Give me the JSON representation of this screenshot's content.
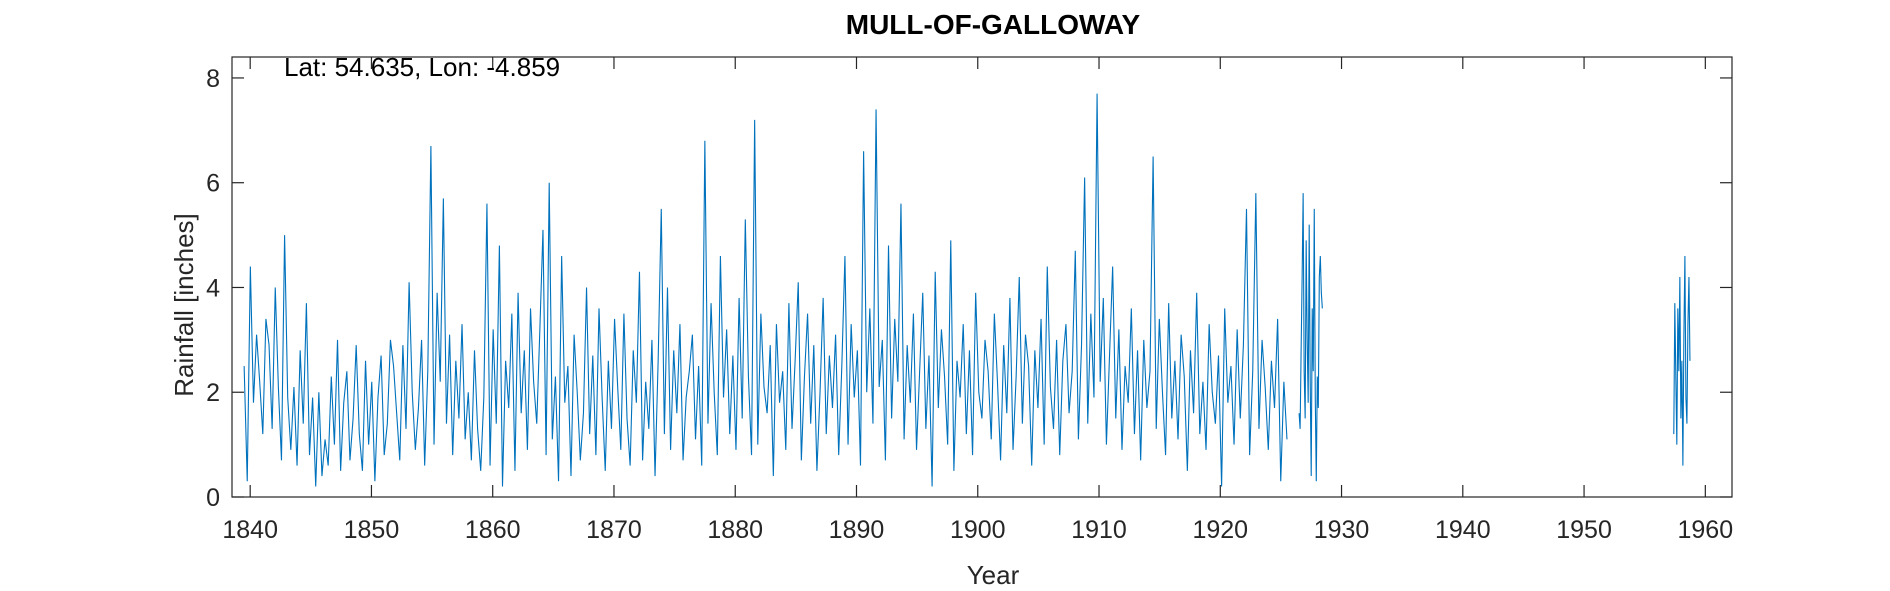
{
  "chart_data": {
    "type": "line",
    "title": "MULL-OF-GALLOWAY",
    "xlabel": "Year",
    "ylabel": "Rainfall [inches]",
    "annotation": "Lat: 54.635, Lon: -4.859",
    "xlim": [
      1838.5,
      1962.2
    ],
    "ylim": [
      0,
      8.4
    ],
    "xticks": [
      1840,
      1850,
      1860,
      1870,
      1880,
      1890,
      1900,
      1910,
      1920,
      1930,
      1940,
      1950,
      1960
    ],
    "yticks": [
      0,
      2,
      4,
      6,
      8
    ],
    "line_color": "#0072BD",
    "frequency": "monthly",
    "segments": [
      {
        "start": 1839.5,
        "step": 0.0833333,
        "values": [
          2.5,
          0.3,
          4.4,
          1.8,
          3.1,
          2.2,
          1.2,
          3.4,
          2.9,
          1.3,
          4.0,
          2.1,
          0.7,
          5.0,
          1.9,
          0.9,
          2.1,
          0.6,
          2.8,
          1.4,
          3.7,
          0.8,
          1.9,
          0.2,
          2.0,
          0.4,
          1.1,
          0.6,
          2.3,
          1.0,
          3.0,
          0.5,
          1.8,
          2.4,
          0.7,
          1.5,
          2.9,
          1.2,
          0.5,
          2.6,
          1.0,
          2.2,
          0.3,
          1.9,
          2.7,
          0.8,
          1.4,
          3.0,
          2.5,
          1.6,
          0.7,
          2.9,
          1.3,
          4.1,
          2.0,
          0.9,
          1.7,
          3.0,
          0.6,
          2.4,
          6.7,
          1.0,
          3.9,
          2.2,
          5.7,
          1.4,
          3.1,
          0.8,
          2.6,
          1.5,
          3.3,
          1.1,
          2.0,
          0.7,
          2.8,
          1.3,
          0.5,
          1.9,
          5.6,
          0.6,
          3.2,
          1.4,
          4.8,
          0.2,
          2.6,
          1.7,
          3.5,
          0.5,
          3.9,
          1.6,
          2.8,
          0.9,
          3.6,
          2.2,
          1.4,
          3.2,
          5.1,
          0.8,
          6.0,
          1.1,
          2.3,
          0.3,
          4.6,
          1.8,
          2.5,
          0.4,
          3.1,
          2.0,
          0.7,
          1.6,
          4.0,
          1.2,
          2.7,
          0.8,
          3.6,
          1.9,
          0.5,
          2.6,
          1.3,
          3.4,
          2.1,
          0.9,
          3.5,
          1.5,
          0.6,
          2.8,
          1.8,
          4.3,
          0.7,
          2.2,
          1.3,
          3.0,
          0.4,
          2.6,
          5.5,
          1.2,
          4.0,
          0.9,
          2.8,
          1.6,
          3.3,
          0.7,
          1.9,
          2.4,
          3.1,
          1.1,
          2.5,
          0.6,
          6.8,
          1.4,
          3.7,
          2.0,
          0.8,
          4.6,
          1.9,
          3.2,
          1.2,
          2.7,
          0.9,
          3.8,
          1.5,
          5.3,
          2.3,
          0.8,
          7.2,
          1.0,
          3.5,
          2.1,
          1.6,
          2.9,
          0.4,
          3.3,
          1.8,
          2.4,
          0.9,
          3.7,
          1.3,
          2.6,
          4.1,
          0.7,
          2.3,
          3.5,
          1.4,
          2.9,
          0.5,
          2.0,
          3.8,
          1.2,
          2.7,
          1.7,
          3.1,
          0.8,
          2.5,
          4.6,
          1.0,
          3.3,
          1.9,
          2.8,
          0.6,
          6.6,
          2.0,
          3.6,
          1.4,
          7.4,
          2.1,
          3.0,
          0.7,
          4.8,
          1.5,
          3.4,
          2.2,
          5.6,
          1.1,
          2.9,
          1.8,
          3.5,
          0.9,
          2.4,
          3.9,
          1.3,
          2.7,
          0.2,
          4.3,
          1.7,
          3.2,
          2.3,
          1.0,
          4.9,
          0.5,
          2.6,
          1.9,
          3.3,
          1.2,
          2.8,
          0.8,
          3.9,
          2.0,
          1.5,
          3.0,
          2.4,
          1.1,
          3.5,
          2.2,
          0.7,
          2.9,
          1.6,
          3.8,
          0.9,
          2.3,
          4.2,
          1.4,
          3.1,
          2.5,
          0.6,
          2.8,
          1.7,
          3.4,
          1.0,
          4.4,
          2.1,
          1.3,
          3.0,
          0.8,
          2.6,
          3.3,
          1.6,
          2.4,
          4.7,
          1.1,
          2.9,
          6.1,
          1.4,
          3.5,
          1.9,
          7.7,
          2.2,
          3.8,
          1.0,
          2.7,
          4.4,
          1.5,
          3.2,
          0.9,
          2.5,
          1.8,
          3.6,
          1.2,
          2.8,
          0.7,
          3.0,
          1.7,
          2.4,
          6.5,
          1.3,
          3.4,
          2.0,
          0.8,
          3.7,
          1.5,
          2.6,
          1.1,
          3.1,
          2.3,
          0.5,
          2.8,
          1.6,
          3.9,
          1.2,
          2.2,
          0.9,
          3.3,
          2.0,
          1.4,
          2.7,
          0.2,
          3.6,
          1.8,
          2.5,
          1.0,
          3.2,
          1.5,
          2.9,
          5.5,
          0.8,
          2.4,
          5.8,
          1.3,
          3.0,
          2.1,
          0.9,
          2.6,
          1.7,
          3.4,
          0.3,
          2.2,
          1.1
        ]
      },
      {
        "start": 1926.5,
        "step": 0.0833333,
        "values": [
          1.6,
          1.3,
          2.8,
          4.2,
          5.8,
          2.4,
          1.5,
          4.9,
          3.0,
          1.8,
          5.2,
          2.2,
          0.4,
          3.6,
          2.4,
          5.5,
          1.9,
          0.3,
          2.3,
          1.7,
          4.2,
          4.6,
          3.9,
          3.6
        ]
      },
      {
        "start": 1957.4,
        "step": 0.0833333,
        "values": [
          1.2,
          3.7,
          2.3,
          1.0,
          3.6,
          2.4,
          4.2,
          1.5,
          2.6,
          0.6,
          3.1,
          4.6,
          1.9,
          1.4,
          3.3,
          4.2,
          2.6
        ]
      }
    ]
  }
}
